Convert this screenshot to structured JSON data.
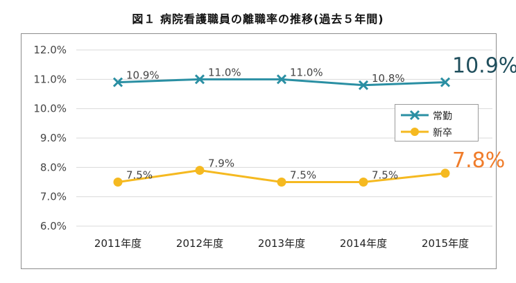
{
  "title": "図１ 病院看護職員の離職率の推移(過去５年間)",
  "colors": {
    "joukin": "#2a8fa3",
    "shinsotsu": "#f5b920",
    "highlight_joukin": "#1f4e5c",
    "highlight_shinsotsu": "#f07c2a",
    "grid": "#d9d9d9"
  },
  "chart_data": {
    "type": "line",
    "title": "図１ 病院看護職員の離職率の推移(過去５年間)",
    "categories": [
      "2011年度",
      "2012年度",
      "2013年度",
      "2014年度",
      "2015年度"
    ],
    "ylim": [
      6.0,
      12.0
    ],
    "yticks": [
      "12.0%",
      "11.0%",
      "10.0%",
      "9.0%",
      "8.0%",
      "7.0%",
      "6.0%"
    ],
    "grid": true,
    "legend_position": "right",
    "series": [
      {
        "name": "常勤",
        "values": [
          10.9,
          11.0,
          11.0,
          10.8,
          10.9
        ],
        "labels": [
          "10.9%",
          "11.0%",
          "11.0%",
          "10.8%",
          "10.9%"
        ],
        "marker": "x"
      },
      {
        "name": "新卒",
        "values": [
          7.5,
          7.9,
          7.5,
          7.5,
          7.8
        ],
        "labels": [
          "7.5%",
          "7.9%",
          "7.5%",
          "7.5%",
          "7.8%"
        ],
        "marker": "circle"
      }
    ]
  }
}
